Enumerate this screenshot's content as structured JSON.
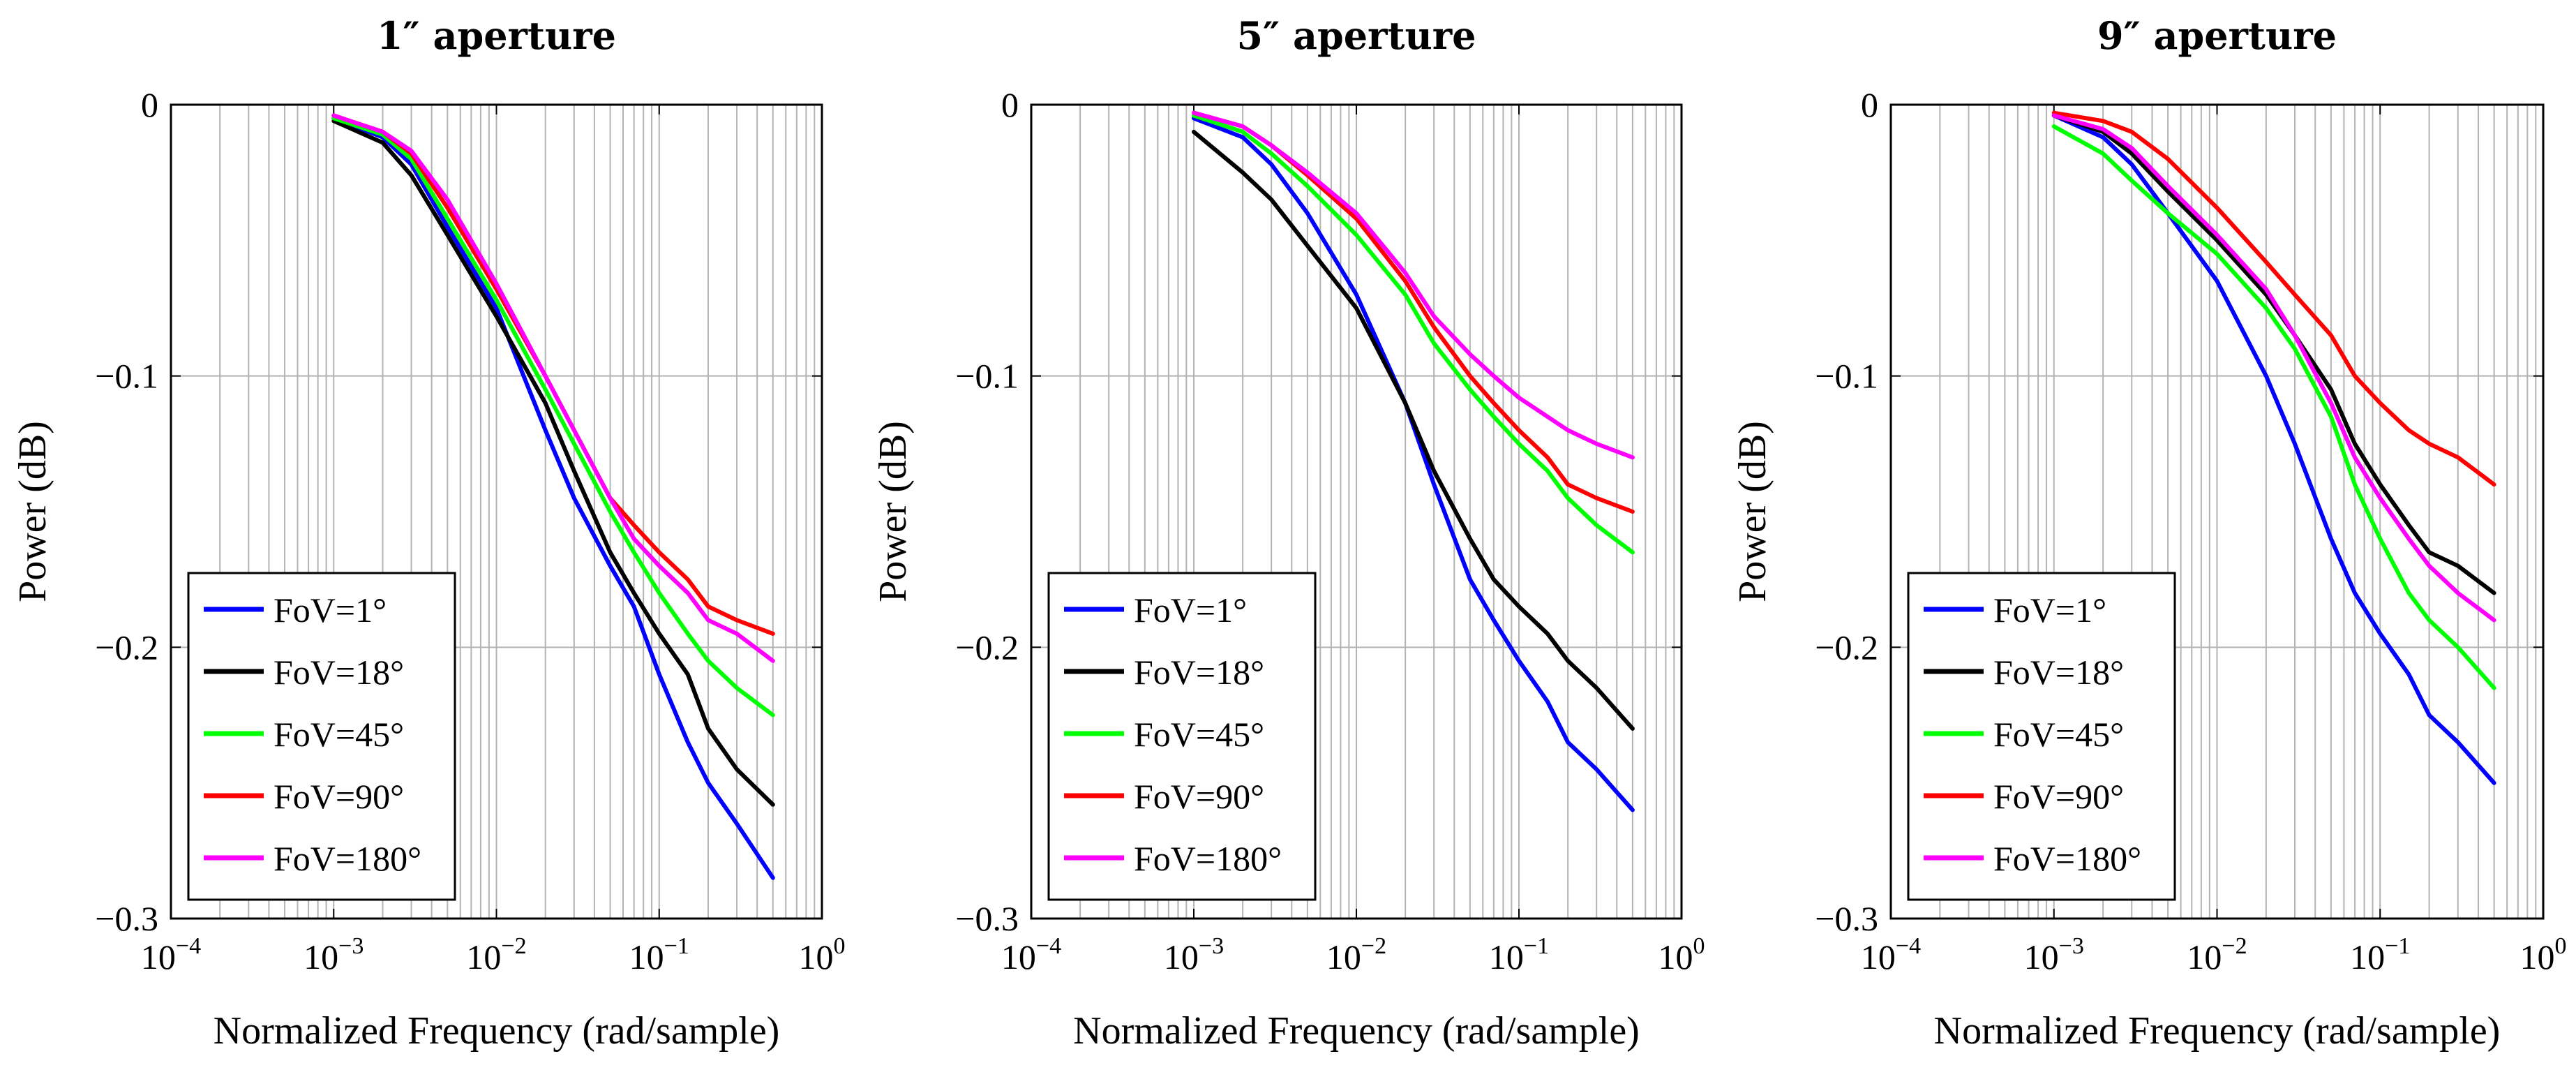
{
  "chart_data": [
    {
      "type": "line",
      "title": "1″ aperture",
      "xlabel": "Normalized Frequency (rad/sample)",
      "ylabel": "Power (dB)",
      "xscale": "log",
      "xlim": [
        0.0001,
        1
      ],
      "ylim": [
        -0.3,
        0
      ],
      "x_ticks": [
        {
          "base": "10",
          "exp": "−4"
        },
        {
          "base": "10",
          "exp": "−3"
        },
        {
          "base": "10",
          "exp": "−2"
        },
        {
          "base": "10",
          "exp": "−1"
        },
        {
          "base": "10",
          "exp": "0"
        }
      ],
      "y_ticks": [
        "0",
        "−0.1",
        "−0.2",
        "−0.3"
      ],
      "grid": true,
      "legend_position": "bottom-left",
      "x": [
        0.001,
        0.002,
        0.003,
        0.005,
        0.01,
        0.02,
        0.03,
        0.05,
        0.07,
        0.1,
        0.15,
        0.2,
        0.3,
        0.5
      ],
      "series": [
        {
          "name": "FoV=1°",
          "color": "#0000ff",
          "values": [
            -0.005,
            -0.012,
            -0.022,
            -0.045,
            -0.075,
            -0.12,
            -0.145,
            -0.17,
            -0.185,
            -0.21,
            -0.235,
            -0.25,
            -0.265,
            -0.285
          ]
        },
        {
          "name": "FoV=18°",
          "color": "#000000",
          "values": [
            -0.006,
            -0.014,
            -0.026,
            -0.048,
            -0.078,
            -0.11,
            -0.135,
            -0.165,
            -0.18,
            -0.195,
            -0.21,
            -0.23,
            -0.245,
            -0.258
          ]
        },
        {
          "name": "FoV=45°",
          "color": "#00ff00",
          "values": [
            -0.005,
            -0.011,
            -0.02,
            -0.042,
            -0.072,
            -0.105,
            -0.125,
            -0.15,
            -0.165,
            -0.18,
            -0.195,
            -0.205,
            -0.215,
            -0.225
          ]
        },
        {
          "name": "FoV=90°",
          "color": "#ff0000",
          "values": [
            -0.004,
            -0.01,
            -0.018,
            -0.038,
            -0.068,
            -0.1,
            -0.12,
            -0.145,
            -0.155,
            -0.165,
            -0.175,
            -0.185,
            -0.19,
            -0.195
          ]
        },
        {
          "name": "FoV=180°",
          "color": "#ff00ff",
          "values": [
            -0.004,
            -0.01,
            -0.017,
            -0.035,
            -0.066,
            -0.1,
            -0.12,
            -0.145,
            -0.16,
            -0.17,
            -0.18,
            -0.19,
            -0.195,
            -0.205
          ]
        }
      ]
    },
    {
      "type": "line",
      "title": "5″ aperture",
      "xlabel": "Normalized Frequency (rad/sample)",
      "ylabel": "Power (dB)",
      "xscale": "log",
      "xlim": [
        0.0001,
        1
      ],
      "ylim": [
        -0.3,
        0
      ],
      "x_ticks": [
        {
          "base": "10",
          "exp": "−4"
        },
        {
          "base": "10",
          "exp": "−3"
        },
        {
          "base": "10",
          "exp": "−2"
        },
        {
          "base": "10",
          "exp": "−1"
        },
        {
          "base": "10",
          "exp": "0"
        }
      ],
      "y_ticks": [
        "0",
        "−0.1",
        "−0.2",
        "−0.3"
      ],
      "grid": true,
      "legend_position": "bottom-left",
      "x": [
        0.001,
        0.002,
        0.003,
        0.005,
        0.01,
        0.02,
        0.03,
        0.05,
        0.07,
        0.1,
        0.15,
        0.2,
        0.3,
        0.5
      ],
      "series": [
        {
          "name": "FoV=1°",
          "color": "#0000ff",
          "values": [
            -0.005,
            -0.012,
            -0.022,
            -0.04,
            -0.07,
            -0.11,
            -0.14,
            -0.175,
            -0.19,
            -0.205,
            -0.22,
            -0.235,
            -0.245,
            -0.26
          ]
        },
        {
          "name": "FoV=18°",
          "color": "#000000",
          "values": [
            -0.01,
            -0.025,
            -0.035,
            -0.052,
            -0.075,
            -0.11,
            -0.135,
            -0.16,
            -0.175,
            -0.185,
            -0.195,
            -0.205,
            -0.215,
            -0.23
          ]
        },
        {
          "name": "FoV=45°",
          "color": "#00ff00",
          "values": [
            -0.004,
            -0.01,
            -0.018,
            -0.03,
            -0.048,
            -0.07,
            -0.088,
            -0.105,
            -0.115,
            -0.125,
            -0.135,
            -0.145,
            -0.155,
            -0.165
          ]
        },
        {
          "name": "FoV=90°",
          "color": "#ff0000",
          "values": [
            -0.003,
            -0.008,
            -0.015,
            -0.026,
            -0.042,
            -0.065,
            -0.082,
            -0.1,
            -0.11,
            -0.12,
            -0.13,
            -0.14,
            -0.145,
            -0.15
          ]
        },
        {
          "name": "FoV=180°",
          "color": "#ff00ff",
          "values": [
            -0.003,
            -0.008,
            -0.015,
            -0.025,
            -0.04,
            -0.062,
            -0.078,
            -0.092,
            -0.1,
            -0.108,
            -0.115,
            -0.12,
            -0.125,
            -0.13
          ]
        }
      ]
    },
    {
      "type": "line",
      "title": "9″ aperture",
      "xlabel": "Normalized Frequency (rad/sample)",
      "ylabel": "Power (dB)",
      "xscale": "log",
      "xlim": [
        0.0001,
        1
      ],
      "ylim": [
        -0.3,
        0
      ],
      "x_ticks": [
        {
          "base": "10",
          "exp": "−4"
        },
        {
          "base": "10",
          "exp": "−3"
        },
        {
          "base": "10",
          "exp": "−2"
        },
        {
          "base": "10",
          "exp": "−1"
        },
        {
          "base": "10",
          "exp": "0"
        }
      ],
      "y_ticks": [
        "0",
        "−0.1",
        "−0.2",
        "−0.3"
      ],
      "grid": true,
      "legend_position": "bottom-left",
      "x": [
        0.001,
        0.002,
        0.003,
        0.005,
        0.01,
        0.02,
        0.03,
        0.05,
        0.07,
        0.1,
        0.15,
        0.2,
        0.3,
        0.5
      ],
      "series": [
        {
          "name": "FoV=1°",
          "color": "#0000ff",
          "values": [
            -0.004,
            -0.012,
            -0.022,
            -0.04,
            -0.065,
            -0.1,
            -0.125,
            -0.16,
            -0.18,
            -0.195,
            -0.21,
            -0.225,
            -0.235,
            -0.25
          ]
        },
        {
          "name": "FoV=18°",
          "color": "#000000",
          "values": [
            -0.004,
            -0.01,
            -0.018,
            -0.032,
            -0.05,
            -0.07,
            -0.085,
            -0.105,
            -0.125,
            -0.14,
            -0.155,
            -0.165,
            -0.17,
            -0.18
          ]
        },
        {
          "name": "FoV=45°",
          "color": "#00ff00",
          "values": [
            -0.008,
            -0.018,
            -0.028,
            -0.04,
            -0.055,
            -0.075,
            -0.09,
            -0.115,
            -0.14,
            -0.16,
            -0.18,
            -0.19,
            -0.2,
            -0.215
          ]
        },
        {
          "name": "FoV=90°",
          "color": "#ff0000",
          "values": [
            -0.003,
            -0.006,
            -0.01,
            -0.02,
            -0.038,
            -0.058,
            -0.07,
            -0.085,
            -0.1,
            -0.11,
            -0.12,
            -0.125,
            -0.13,
            -0.14
          ]
        },
        {
          "name": "FoV=180°",
          "color": "#ff00ff",
          "values": [
            -0.004,
            -0.009,
            -0.016,
            -0.03,
            -0.048,
            -0.068,
            -0.085,
            -0.11,
            -0.13,
            -0.145,
            -0.16,
            -0.17,
            -0.18,
            -0.19
          ]
        }
      ]
    }
  ]
}
